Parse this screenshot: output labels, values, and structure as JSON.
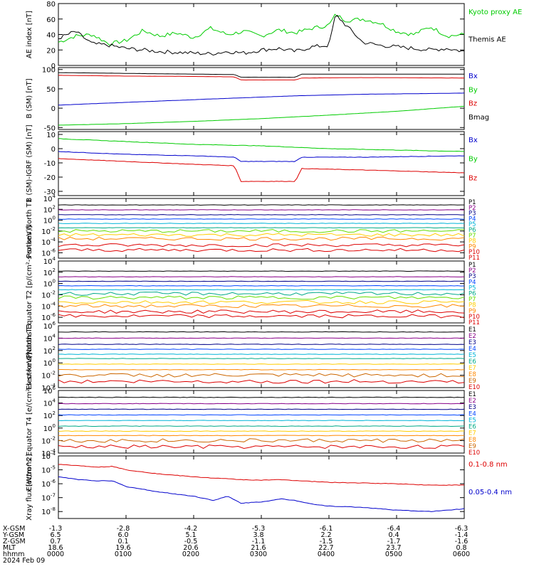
{
  "figure": {
    "date_label": "2024 Feb 09"
  },
  "time_axis": {
    "ticks": [
      "0000",
      "0100",
      "0200",
      "0300",
      "0400",
      "0500",
      "0600"
    ],
    "rows": [
      {
        "label": "X-GSM",
        "values": [
          "-1.3",
          "-2.8",
          "-4.2",
          "-5.3",
          "-6.1",
          "-6.4",
          "-6.3"
        ]
      },
      {
        "label": "Y-GSM",
        "values": [
          "6.5",
          "6.0",
          "5.1",
          "3.8",
          "2.2",
          "0.4",
          "-1.4"
        ]
      },
      {
        "label": "Z-GSM",
        "values": [
          "0.7",
          "0.1",
          "-0.5",
          "-1.1",
          "-1.5",
          "-1.7",
          "-1.6"
        ]
      },
      {
        "label": "MLT",
        "values": [
          "18.6",
          "19.6",
          "20.6",
          "21.6",
          "22.7",
          "23.7",
          "0.8"
        ]
      },
      {
        "label": "hhmm",
        "values": [
          "0000",
          "0100",
          "0200",
          "0300",
          "0400",
          "0500",
          "0600"
        ]
      }
    ]
  },
  "colors": {
    "black": "#000000",
    "red": "#dd0000",
    "green": "#00cc00",
    "blue": "#0000cc",
    "purple": "#880088",
    "navy": "#000088",
    "blue2": "#0044ff",
    "cyan": "#00b4d8",
    "teal": "#00aa88",
    "orange": "#ff8800",
    "gold": "#ffcc00",
    "lime": "#66dd00",
    "dkorange": "#cc6600"
  },
  "chart_data": [
    {
      "type": "line",
      "ylabel": "AE index [nT]",
      "ylim": [
        0,
        80
      ],
      "yscale": "linear",
      "yticks": [
        "0",
        "20",
        "40",
        "60",
        "80"
      ],
      "series": [
        {
          "name": "Kyoto proxy AE",
          "color": "green",
          "x": [
            0,
            0.25,
            0.5,
            0.75,
            1,
            1.25,
            1.5,
            1.75,
            2,
            2.25,
            2.5,
            2.75,
            3,
            3.25,
            3.5,
            3.75,
            4,
            4.1,
            4.25,
            4.5,
            4.75,
            5,
            5.25,
            5.5,
            5.75,
            6
          ],
          "y": [
            30,
            38,
            40,
            28,
            32,
            45,
            38,
            42,
            36,
            48,
            40,
            44,
            38,
            46,
            42,
            48,
            52,
            66,
            58,
            60,
            55,
            44,
            40,
            50,
            38,
            40
          ]
        },
        {
          "name": "Themis AE",
          "color": "black",
          "x": [
            0,
            0.25,
            0.5,
            0.75,
            1,
            1.25,
            1.5,
            1.75,
            2,
            2.25,
            2.5,
            2.75,
            3,
            3.25,
            3.5,
            3.75,
            4,
            4.1,
            4.25,
            4.5,
            4.75,
            5,
            5.25,
            5.5,
            5.75,
            6
          ],
          "y": [
            35,
            44,
            28,
            26,
            22,
            20,
            18,
            17,
            16,
            15,
            18,
            16,
            20,
            22,
            18,
            24,
            26,
            66,
            52,
            30,
            26,
            24,
            22,
            20,
            22,
            18
          ]
        }
      ]
    },
    {
      "type": "line",
      "ylabel": "B (SM) [nT]",
      "ylim": [
        -55,
        105
      ],
      "yscale": "linear",
      "yticks": [
        "-50",
        "0",
        "50",
        "100"
      ],
      "series": [
        {
          "name": "Bx",
          "color": "blue",
          "x": [
            0,
            1,
            2,
            2.6,
            3.5,
            4.5,
            5.5,
            6
          ],
          "y": [
            8,
            15,
            22,
            26,
            32,
            36,
            38,
            39
          ]
        },
        {
          "name": "By",
          "color": "green",
          "x": [
            0,
            1,
            2,
            3,
            4,
            5,
            6
          ],
          "y": [
            -44,
            -40,
            -34,
            -27,
            -18,
            -8,
            5
          ]
        },
        {
          "name": "Bz",
          "color": "red",
          "x": [
            0,
            1,
            2,
            2.6,
            2.7,
            3.5,
            3.6,
            4.5,
            6
          ],
          "y": [
            85,
            83,
            82,
            81,
            73,
            73,
            78,
            79,
            78
          ]
        },
        {
          "name": "Bmag",
          "color": "black",
          "x": [
            0,
            1,
            2,
            2.6,
            2.7,
            3.5,
            3.6,
            6
          ],
          "y": [
            92,
            90,
            88,
            87,
            80,
            80,
            88,
            88
          ]
        }
      ]
    },
    {
      "type": "line",
      "ylabel": "B (SM)-IGRF (SM) [nT]",
      "ylim": [
        -33,
        12
      ],
      "yscale": "linear",
      "yticks": [
        "-30",
        "-20",
        "-10",
        "0",
        "10"
      ],
      "series": [
        {
          "name": "Bx",
          "color": "blue",
          "x": [
            0,
            1,
            2,
            2.6,
            2.7,
            3.5,
            3.6,
            4.5,
            6
          ],
          "y": [
            -2,
            -4,
            -5,
            -6,
            -9,
            -9,
            -6,
            -6,
            -5
          ]
        },
        {
          "name": "By",
          "color": "green",
          "x": [
            0,
            1,
            2,
            3,
            4,
            5,
            6
          ],
          "y": [
            7,
            5,
            3,
            2,
            0,
            -1,
            -2
          ]
        },
        {
          "name": "Bz",
          "color": "red",
          "x": [
            0,
            1,
            2,
            2.6,
            2.7,
            3.5,
            3.6,
            4.5,
            6
          ],
          "y": [
            -7,
            -9,
            -11,
            -12,
            -23,
            -23,
            -14,
            -15,
            -17
          ]
        }
      ]
    },
    {
      "type": "line",
      "ylabel": "Protons North T1",
      "yscale": "log",
      "ylim": [
        -7,
        4
      ],
      "yticks": [
        "10^4",
        "10^2",
        "10^0",
        "10^-2",
        "10^-4",
        "10^-6"
      ],
      "series": [
        {
          "name": "P1",
          "color": "black",
          "level": 2.8
        },
        {
          "name": "P2",
          "color": "purple",
          "level": 1.9
        },
        {
          "name": "P3",
          "color": "navy",
          "level": 1.0
        },
        {
          "name": "P4",
          "color": "blue2",
          "level": 0.2
        },
        {
          "name": "P5",
          "color": "cyan",
          "level": -0.6
        },
        {
          "name": "P6",
          "color": "teal",
          "level": -1.4
        },
        {
          "name": "P7",
          "color": "lime",
          "level": -2.0
        },
        {
          "name": "P8",
          "color": "gold",
          "level": -2.7
        },
        {
          "name": "P9",
          "color": "orange",
          "level": -3.4
        },
        {
          "name": "P10",
          "color": "red",
          "level": -4.6
        },
        {
          "name": "P11",
          "color": "red",
          "level": -5.5
        }
      ]
    },
    {
      "type": "line",
      "ylabel": "Protons Equator T2 [p/(cm²-s-sr-keV)]",
      "yscale": "log",
      "ylim": [
        -7,
        4
      ],
      "yticks": [
        "10^4",
        "10^2",
        "10^0",
        "10^-2",
        "10^-4",
        "10^-6"
      ],
      "series": [
        {
          "name": "P1",
          "color": "black",
          "level": 2.2
        },
        {
          "name": "P2",
          "color": "purple",
          "level": 1.2
        },
        {
          "name": "P3",
          "color": "navy",
          "level": 0.4
        },
        {
          "name": "P4",
          "color": "blue2",
          "level": -0.4
        },
        {
          "name": "P5",
          "color": "cyan",
          "level": -1.1
        },
        {
          "name": "P6",
          "color": "teal",
          "level": -1.8
        },
        {
          "name": "P7",
          "color": "lime",
          "level": -2.5
        },
        {
          "name": "P8",
          "color": "gold",
          "level": -3.3
        },
        {
          "name": "P9",
          "color": "orange",
          "level": -4.0
        },
        {
          "name": "P10",
          "color": "red",
          "level": -5.0
        },
        {
          "name": "P11",
          "color": "red",
          "level": -5.8
        }
      ]
    },
    {
      "type": "line",
      "ylabel": "Electrons North T3",
      "yscale": "log",
      "ylim": [
        -4,
        6
      ],
      "yticks": [
        "10^6",
        "10^4",
        "10^2",
        "10^0",
        "10^-2",
        "10^-4"
      ],
      "series": [
        {
          "name": "E1",
          "color": "black",
          "level": 5.0
        },
        {
          "name": "E2",
          "color": "purple",
          "level": 4.0
        },
        {
          "name": "E3",
          "color": "navy",
          "level": 3.0
        },
        {
          "name": "E4",
          "color": "blue2",
          "level": 2.2
        },
        {
          "name": "E5",
          "color": "cyan",
          "level": 1.4
        },
        {
          "name": "E6",
          "color": "teal",
          "level": 0.7
        },
        {
          "name": "E7",
          "color": "gold",
          "level": -0.2
        },
        {
          "name": "E8",
          "color": "orange",
          "level": -1.1
        },
        {
          "name": "E9",
          "color": "dkorange",
          "level": -2.0
        },
        {
          "name": "E10",
          "color": "red",
          "level": -3.0
        }
      ]
    },
    {
      "type": "line",
      "ylabel": "Electrons Equator T4 [e/(cm²-s-sr-keV)]",
      "yscale": "log",
      "ylim": [
        -4,
        6
      ],
      "yticks": [
        "10^6",
        "10^4",
        "10^2",
        "10^0",
        "10^-2",
        "10^-4"
      ],
      "series": [
        {
          "name": "E1",
          "color": "black",
          "level": 4.9
        },
        {
          "name": "E2",
          "color": "purple",
          "level": 3.9
        },
        {
          "name": "E3",
          "color": "navy",
          "level": 3.0
        },
        {
          "name": "E4",
          "color": "blue2",
          "level": 2.1
        },
        {
          "name": "E5",
          "color": "cyan",
          "level": 1.2
        },
        {
          "name": "E6",
          "color": "teal",
          "level": 0.3
        },
        {
          "name": "E7",
          "color": "gold",
          "level": -0.5
        },
        {
          "name": "E8",
          "color": "orange",
          "level": -1.2
        },
        {
          "name": "E9",
          "color": "dkorange",
          "level": -2.0
        },
        {
          "name": "E10",
          "color": "red",
          "level": -3.0
        }
      ]
    },
    {
      "type": "line",
      "ylabel": "Xray flux [W/m^2]",
      "yscale": "log",
      "ylim": [
        -8.5,
        -4
      ],
      "yticks": [
        "10^-4",
        "10^-5",
        "10^-6",
        "10^-7",
        "10^-8"
      ],
      "series": [
        {
          "name": "0.1-0.8 nm",
          "color": "red",
          "x": [
            0,
            0.3,
            0.6,
            0.8,
            1.0,
            1.5,
            2.0,
            2.3,
            2.7,
            3.0,
            3.3,
            3.6,
            4.0,
            4.5,
            5.0,
            5.5,
            6.0
          ],
          "y": [
            -4.6,
            -4.7,
            -4.8,
            -4.75,
            -5.0,
            -5.3,
            -5.5,
            -5.6,
            -5.7,
            -5.75,
            -5.7,
            -5.8,
            -5.9,
            -5.95,
            -6.0,
            -6.1,
            -6.1
          ]
        },
        {
          "name": "0.05-0.4 nm",
          "color": "blue",
          "x": [
            0,
            0.3,
            0.6,
            0.8,
            1.0,
            1.5,
            2.0,
            2.3,
            2.5,
            2.7,
            3.0,
            3.3,
            3.5,
            3.8,
            4.0,
            4.5,
            5.0,
            5.5,
            6.0
          ],
          "y": [
            -5.5,
            -5.7,
            -5.8,
            -5.8,
            -6.2,
            -6.6,
            -6.9,
            -7.2,
            -6.9,
            -7.4,
            -7.3,
            -7.1,
            -7.2,
            -7.5,
            -7.6,
            -7.7,
            -7.9,
            -8.0,
            -7.8
          ]
        }
      ]
    }
  ]
}
